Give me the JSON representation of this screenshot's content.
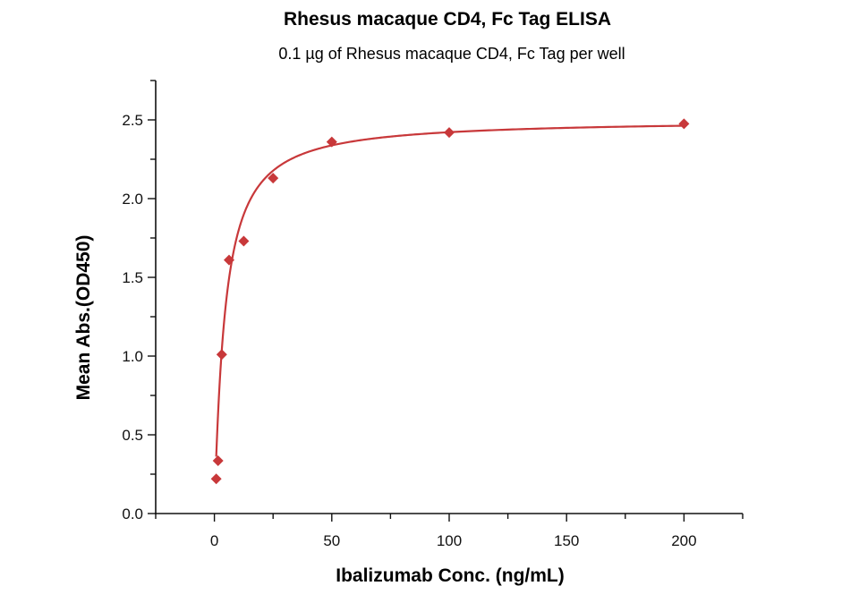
{
  "chart_data": {
    "type": "scatter",
    "title": "Rhesus macaque CD4, Fc Tag ELISA",
    "subtitle": "0.1 µg of Rhesus macaque CD4, Fc Tag per well",
    "xlabel": "Ibalizumab Conc. (ng/mL)",
    "ylabel": "Mean Abs.(OD450)",
    "xlim": [
      -25,
      225
    ],
    "ylim": [
      0,
      2.75
    ],
    "xticks": [
      0,
      50,
      100,
      150,
      200
    ],
    "xtick_labels": [
      "0",
      "50",
      "100",
      "150",
      "200"
    ],
    "yticks": [
      0,
      0.5,
      1.0,
      1.5,
      2.0,
      2.5
    ],
    "ytick_labels": [
      "0.0",
      "0.5",
      "1.0",
      "1.5",
      "2.0",
      "2.5"
    ],
    "grid": false,
    "series": [
      {
        "name": "Rhesus macaque CD4, Fc Tag",
        "color": "#c8383a",
        "marker": "diamond",
        "x": [
          0.78,
          1.56,
          3.125,
          6.25,
          12.5,
          25,
          50,
          100,
          200
        ],
        "y": [
          0.22,
          0.335,
          1.01,
          1.61,
          1.73,
          2.13,
          2.36,
          2.42,
          2.475
        ],
        "fit": {
          "model": "4PL",
          "bottom": 0.05,
          "top": 2.5,
          "ec50": 4.5,
          "hill": 1.1
        }
      }
    ]
  }
}
